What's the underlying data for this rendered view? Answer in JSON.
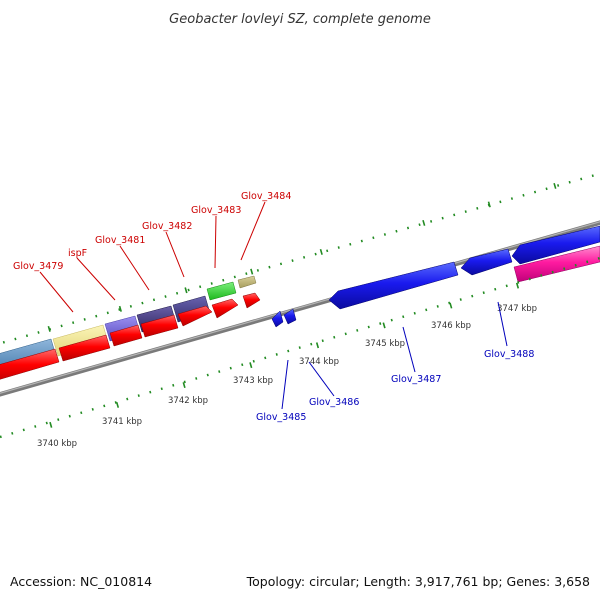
{
  "title": "Geobacter lovleyi SZ, complete genome",
  "footer": {
    "accession": "Accession: NC_010814",
    "summary": "Topology: circular; Length: 3,917,761 bp; Genes: 3,658"
  },
  "colors": {
    "forward_label": "#cc0000",
    "reverse_label": "#0000bb",
    "cds_forward": "#ff0000",
    "cds_reverse": "#0000ee",
    "backbone": "#888888",
    "ticks": "#228b22"
  },
  "position_labels": [
    "3740 kbp",
    "3741 kbp",
    "3742 kbp",
    "3743 kbp",
    "3744 kbp",
    "3745 kbp",
    "3746 kbp",
    "3747 kbp"
  ],
  "forward_genes": [
    "Glov_3479",
    "ispF",
    "Glov_3481",
    "Glov_3482",
    "Glov_3483",
    "Glov_3484"
  ],
  "reverse_genes": [
    "Glov_3485",
    "Glov_3486",
    "Glov_3487",
    "Glov_3488"
  ]
}
